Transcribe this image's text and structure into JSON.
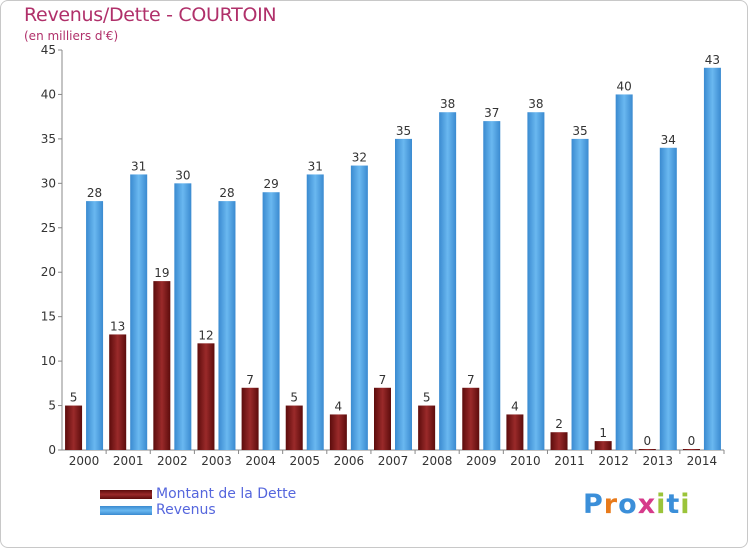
{
  "chart_data": {
    "type": "bar",
    "title": "Revenus/Dette - COURTOIN",
    "subtitle": "(en milliers d'€)",
    "categories": [
      "2000",
      "2001",
      "2002",
      "2003",
      "2004",
      "2005",
      "2006",
      "2007",
      "2008",
      "2009",
      "2010",
      "2011",
      "2012",
      "2013",
      "2014"
    ],
    "series": [
      {
        "name": "Montant de la Dette",
        "color": "#7a1515",
        "values": [
          5,
          13,
          19,
          12,
          7,
          5,
          4,
          7,
          5,
          7,
          4,
          2,
          1,
          0,
          0
        ]
      },
      {
        "name": "Revenus",
        "color": "#4a9ee0",
        "values": [
          28,
          31,
          30,
          28,
          29,
          31,
          32,
          35,
          38,
          37,
          38,
          35,
          40,
          34,
          43
        ]
      }
    ],
    "ylim": [
      0,
      45
    ],
    "yticks": [
      0,
      5,
      10,
      15,
      20,
      25,
      30,
      35,
      40,
      45
    ],
    "grid": false,
    "legend_position": "bottom-left"
  },
  "logo": {
    "letters": [
      "P",
      "r",
      "o",
      "x",
      "i",
      "t",
      "i"
    ],
    "colors": [
      "#3b8fd9",
      "#e87a1a",
      "#3b8fd9",
      "#d63a8a",
      "#9bc43a",
      "#3b8fd9",
      "#9bc43a"
    ]
  }
}
